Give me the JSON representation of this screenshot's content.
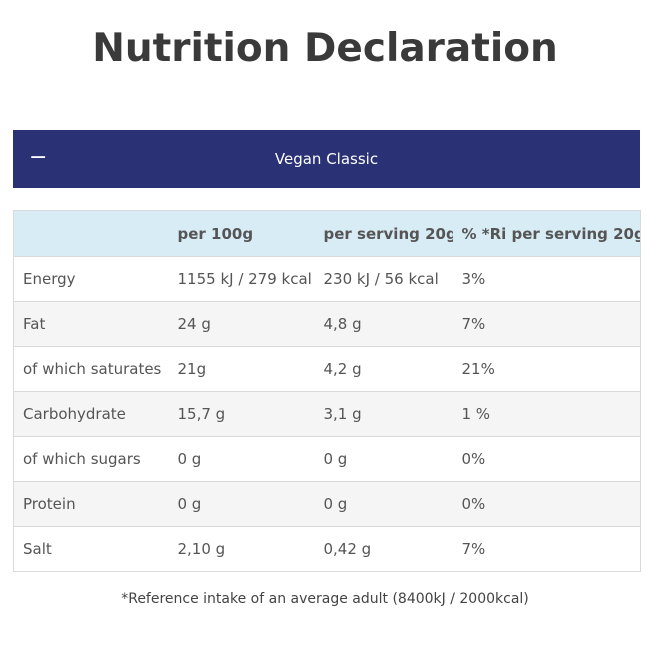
{
  "page": {
    "title": "Nutrition Declaration"
  },
  "accordion": {
    "toggle_symbol": "−",
    "title": "Vegan Classic",
    "expanded": true,
    "header_color": "#2a3275"
  },
  "table": {
    "header_color": "#d8ecf6",
    "columns": [
      "",
      "per 100g",
      "per serving 20g",
      "% *Ri per serving 20g"
    ],
    "rows": [
      [
        "Energy",
        "1155 kJ / 279 kcal",
        "230 kJ / 56 kcal",
        "3%"
      ],
      [
        "Fat",
        "24 g",
        "4,8 g",
        "7%"
      ],
      [
        "of which saturates",
        "21g",
        "4,2 g",
        "21%"
      ],
      [
        "Carbohydrate",
        "15,7 g",
        "3,1 g",
        "1 %"
      ],
      [
        "of which sugars",
        "0 g",
        "0 g",
        "0%"
      ],
      [
        "Protein",
        "0 g",
        "0 g",
        "0%"
      ],
      [
        "Salt",
        "2,10 g",
        "0,42 g",
        "7%"
      ]
    ]
  },
  "footnote": "*Reference intake of an average adult (8400kJ / 2000kcal)"
}
